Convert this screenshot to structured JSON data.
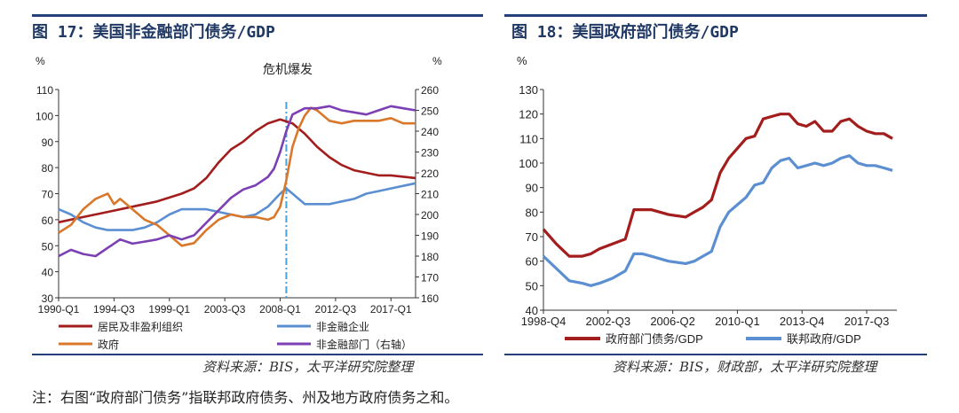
{
  "left": {
    "title": "图 17：美国非金融部门债务/GDP",
    "source": "资料来源：BIS，太平洋研究院整理",
    "unit_left": "%",
    "unit_right": "%",
    "annotation": "危机爆发",
    "colors": {
      "household": "#a31d1d",
      "nonfin": "#5b8fd1",
      "gov": "#d9782b",
      "total": "#7c3fb4"
    }
  },
  "right": {
    "title": "图 18：美国政府部门债务/GDP",
    "source": "资料来源：BIS，财政部，太平洋研究院整理",
    "unit_left": "%",
    "colors": {
      "gov": "#a31d1d",
      "fed": "#5b8fd1"
    }
  },
  "note": "注：右图“政府部门债务”指联邦政府债务、州及地方政府债务之和。",
  "chart_data": [
    {
      "type": "line",
      "title": "图 17：美国非金融部门债务/GDP",
      "ylabel": "%",
      "y2label": "%",
      "ylim": [
        30,
        110
      ],
      "y2lim": [
        160,
        260
      ],
      "yticks": [
        30,
        40,
        50,
        60,
        70,
        80,
        90,
        100,
        110
      ],
      "y2ticks": [
        160,
        170,
        180,
        190,
        200,
        210,
        220,
        230,
        240,
        250,
        260
      ],
      "xlim": [
        1990.0,
        2019.0
      ],
      "xtick_labels": [
        "1990-Q1",
        "1994-Q3",
        "1999-Q1",
        "2003-Q3",
        "2008-Q1",
        "2012-Q3",
        "2017-Q1"
      ],
      "xtick_positions": [
        1990.0,
        1994.5,
        1999.0,
        2003.5,
        2008.0,
        2012.5,
        2017.0
      ],
      "crisis_x": 2008.5,
      "legend": "bottom",
      "series": [
        {
          "name": "居民及非盈利组织",
          "axis": "left",
          "x": [
            1990,
            1992,
            1994,
            1996,
            1998,
            2000,
            2001,
            2002,
            2003,
            2004,
            2005,
            2006,
            2007,
            2008,
            2009,
            2010,
            2011,
            2012,
            2013,
            2014,
            2015,
            2016,
            2017,
            2018,
            2019
          ],
          "values": [
            59,
            61,
            63,
            65,
            67,
            70,
            72,
            76,
            82,
            87,
            90,
            94,
            97,
            98.5,
            97,
            93,
            88,
            84,
            81,
            79,
            78,
            77,
            77,
            76.5,
            76
          ]
        },
        {
          "name": "非金融企业",
          "axis": "left",
          "x": [
            1990,
            1991,
            1992,
            1993,
            1994,
            1995,
            1996,
            1997,
            1998,
            1999,
            2000,
            2001,
            2002,
            2003,
            2004,
            2005,
            2006,
            2007,
            2008,
            2008.5,
            2009,
            2009.5,
            2010,
            2011,
            2012,
            2013,
            2014,
            2015,
            2016,
            2017,
            2018,
            2019
          ],
          "values": [
            64,
            62,
            59,
            57,
            56,
            56,
            56,
            57,
            59,
            62,
            64,
            64,
            64,
            63,
            62,
            61,
            62,
            65,
            70,
            72,
            70,
            68,
            66,
            66,
            66,
            67,
            68,
            70,
            71,
            72,
            73,
            74
          ]
        },
        {
          "name": "政府",
          "axis": "left",
          "x": [
            1990,
            1991,
            1992,
            1993,
            1994,
            1994.5,
            1995,
            1996,
            1997,
            1998,
            1999,
            2000,
            2001,
            2002,
            2003,
            2004,
            2005,
            2006,
            2007,
            2007.5,
            2008,
            2008.5,
            2009,
            2009.5,
            2010,
            2010.5,
            2011,
            2012,
            2013,
            2014,
            2015,
            2016,
            2017,
            2018,
            2019
          ],
          "values": [
            55,
            58,
            64,
            68,
            70,
            66,
            68,
            64,
            60,
            58,
            54,
            50,
            51,
            56,
            60,
            62,
            61,
            61,
            60,
            61,
            65,
            75,
            88,
            95,
            100,
            103,
            102,
            98,
            97,
            98,
            98,
            98,
            99,
            97,
            97
          ]
        },
        {
          "name": "非金融部门（右轴）",
          "axis": "right",
          "x": [
            1990,
            1991,
            1992,
            1993,
            1994,
            1995,
            1996,
            1997,
            1998,
            1999,
            2000,
            2001,
            2002,
            2003,
            2004,
            2005,
            2006,
            2007,
            2007.5,
            2008,
            2008.5,
            2009,
            2010,
            2011,
            2012,
            2013,
            2014,
            2015,
            2016,
            2017,
            2018,
            2019
          ],
          "values": [
            180,
            183,
            181,
            180,
            184,
            188,
            186,
            187,
            188,
            190,
            188,
            190,
            196,
            202,
            208,
            212,
            214,
            218,
            222,
            230,
            240,
            248,
            251,
            251,
            252,
            250,
            249,
            248,
            250,
            252,
            251,
            250
          ]
        }
      ]
    },
    {
      "type": "line",
      "title": "图 18：美国政府部门债务/GDP",
      "ylabel": "%",
      "ylim": [
        40,
        130
      ],
      "yticks": [
        40,
        50,
        60,
        70,
        80,
        90,
        100,
        110,
        120,
        130
      ],
      "xlim": [
        1998.75,
        2019.25
      ],
      "xtick_labels": [
        "1998-Q4",
        "2002-Q3",
        "2006-Q2",
        "2010-Q1",
        "2013-Q4",
        "2017-Q3"
      ],
      "xtick_positions": [
        1998.75,
        2002.5,
        2006.25,
        2010.0,
        2013.75,
        2017.5
      ],
      "legend": "bottom",
      "series": [
        {
          "name": "政府部门债务/GDP",
          "x": [
            1998.75,
            1999.5,
            2000.25,
            2001,
            2001.5,
            2002,
            2002.75,
            2003.5,
            2004,
            2004.5,
            2005,
            2006,
            2007,
            2007.5,
            2008,
            2008.5,
            2009,
            2009.5,
            2010,
            2010.5,
            2011,
            2011.5,
            2012,
            2012.5,
            2013,
            2013.5,
            2014,
            2014.5,
            2015,
            2015.5,
            2016,
            2016.5,
            2017,
            2017.5,
            2018,
            2018.5,
            2019
          ],
          "values": [
            73,
            67,
            62,
            62,
            63,
            65,
            67,
            69,
            81,
            81,
            81,
            79,
            78,
            80,
            82,
            85,
            96,
            102,
            106,
            110,
            111,
            118,
            119,
            120,
            120,
            116,
            115,
            117,
            113,
            113,
            117,
            118,
            115,
            113,
            112,
            112,
            110
          ]
        },
        {
          "name": "联邦政府/GDP",
          "x": [
            1998.75,
            1999.5,
            2000.25,
            2001,
            2001.5,
            2002,
            2002.75,
            2003.5,
            2004,
            2004.5,
            2005,
            2006,
            2007,
            2007.5,
            2008,
            2008.5,
            2009,
            2009.5,
            2010,
            2010.5,
            2011,
            2011.5,
            2012,
            2012.5,
            2013,
            2013.5,
            2014,
            2014.5,
            2015,
            2015.5,
            2016,
            2016.5,
            2017,
            2017.5,
            2018,
            2018.5,
            2019
          ],
          "values": [
            62,
            57,
            52,
            51,
            50,
            51,
            53,
            56,
            63,
            63,
            62,
            60,
            59,
            60,
            62,
            64,
            74,
            80,
            83,
            86,
            91,
            92,
            98,
            101,
            102,
            98,
            99,
            100,
            99,
            100,
            102,
            103,
            100,
            99,
            99,
            98,
            97
          ]
        }
      ]
    }
  ]
}
